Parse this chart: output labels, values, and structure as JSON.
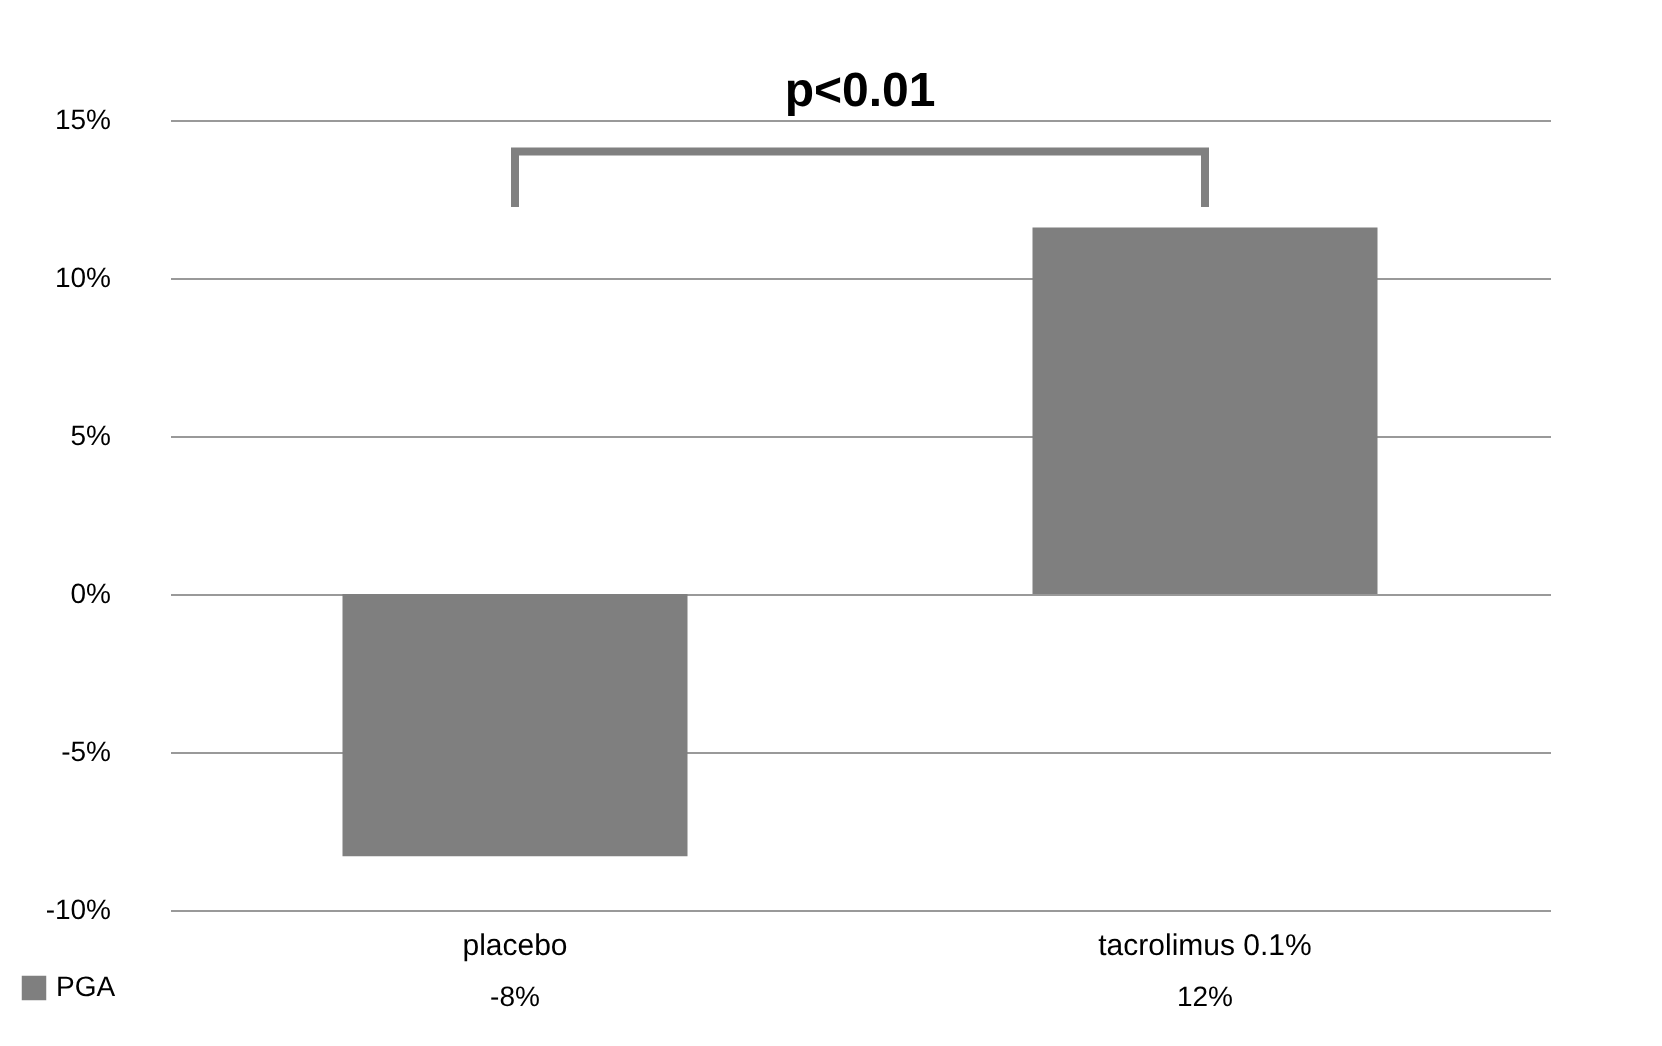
{
  "chart_data": {
    "type": "bar",
    "categories": [
      "placebo",
      "tacrolimus 0.1%"
    ],
    "series": [
      {
        "name": "PGA",
        "color": "#7f7f7f",
        "values": [
          -8.3,
          11.6
        ]
      }
    ],
    "value_labels": [
      "-8%",
      "12%"
    ],
    "ylim": [
      -10,
      15
    ],
    "yticks": [
      {
        "value": -10,
        "label": "-10%"
      },
      {
        "value": -5,
        "label": "-5%"
      },
      {
        "value": 0,
        "label": "0%"
      },
      {
        "value": 5,
        "label": "5%"
      },
      {
        "value": 10,
        "label": "10%"
      },
      {
        "value": 15,
        "label": "15%"
      }
    ],
    "grid": "y",
    "legend": "bottom left",
    "annotations": [
      "p<0.01"
    ]
  }
}
